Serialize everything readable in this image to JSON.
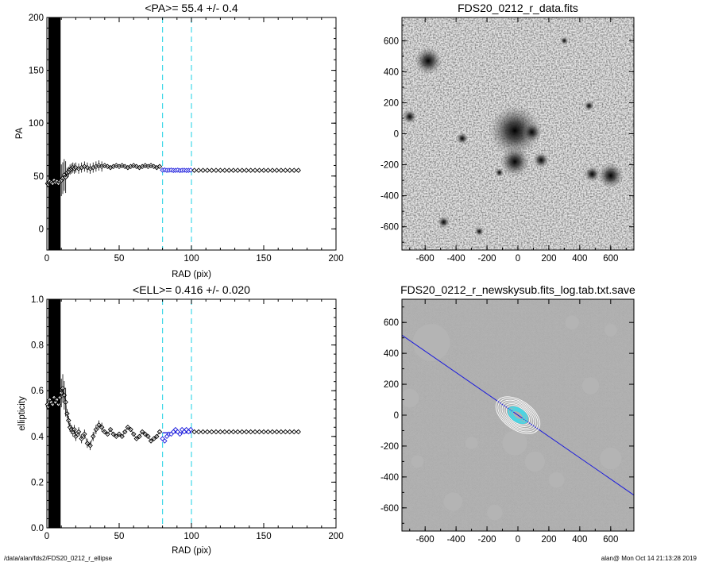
{
  "footer": {
    "left": "/data/alan/fds2/FDS20_0212_r_ellipse",
    "right": "alan@  Mon Oct 14 21:13:28 2019"
  },
  "colors": {
    "guide": "#40d8e8",
    "fit": "#1a1adc",
    "points": "#000000"
  },
  "chart_data": [
    {
      "type": "scatter",
      "title": "<PA>=  55.4 +/-   0.4",
      "xlabel": "RAD (pix)",
      "ylabel": "PA",
      "xlim": [
        0,
        200
      ],
      "ylim": [
        -20,
        200
      ],
      "xticks": [
        0,
        50,
        100,
        150,
        200
      ],
      "yticks": [
        0,
        50,
        100,
        150,
        200
      ],
      "vlines": [
        80,
        100
      ],
      "fit_range": [
        80,
        100
      ],
      "fit_value": 55.4,
      "series": [
        {
          "values": [
            [
              0.5,
              43
            ],
            [
              1,
              42
            ],
            [
              1.5,
              44
            ],
            [
              2,
              45
            ],
            [
              3,
              44
            ],
            [
              4,
              43
            ],
            [
              5,
              46
            ],
            [
              6,
              44
            ],
            [
              7,
              45
            ],
            [
              8,
              43
            ],
            [
              9,
              45
            ],
            [
              10,
              46
            ],
            [
              11,
              48
            ],
            [
              12,
              51
            ],
            [
              13,
              49
            ],
            [
              14,
              53
            ],
            [
              15,
              54
            ],
            [
              16,
              56
            ],
            [
              17,
              57
            ],
            [
              18,
              58
            ],
            [
              19,
              57
            ],
            [
              20,
              58
            ],
            [
              22,
              57
            ],
            [
              24,
              58
            ],
            [
              26,
              59
            ],
            [
              28,
              58
            ],
            [
              30,
              57
            ],
            [
              32,
              58
            ],
            [
              34,
              59
            ],
            [
              36,
              60
            ],
            [
              38,
              59
            ],
            [
              40,
              60
            ],
            [
              42,
              59
            ],
            [
              44,
              58
            ],
            [
              46,
              59
            ],
            [
              48,
              60
            ],
            [
              50,
              59
            ],
            [
              52,
              60
            ],
            [
              54,
              59
            ],
            [
              56,
              58
            ],
            [
              58,
              59
            ],
            [
              60,
              60
            ],
            [
              62,
              59
            ],
            [
              64,
              58
            ],
            [
              66,
              59
            ],
            [
              68,
              60
            ],
            [
              70,
              59
            ],
            [
              72,
              60
            ],
            [
              74,
              59
            ],
            [
              76,
              58
            ],
            [
              78,
              59
            ]
          ]
        },
        {
          "values": [
            [
              80,
              55.6
            ],
            [
              81.5,
              55.8
            ],
            [
              83,
              55.4
            ],
            [
              84.5,
              55.5
            ],
            [
              86,
              55.7
            ],
            [
              87.5,
              55.3
            ],
            [
              89,
              55.4
            ],
            [
              90.5,
              55.6
            ],
            [
              92,
              55.2
            ],
            [
              93.5,
              55.4
            ],
            [
              95,
              55.5
            ],
            [
              96.5,
              55.3
            ],
            [
              98,
              55.4
            ],
            [
              99.5,
              55.6
            ]
          ]
        },
        {
          "values": [
            [
              102,
              55.4
            ],
            [
              105,
              55.4
            ],
            [
              108,
              55.4
            ],
            [
              111,
              55.4
            ],
            [
              114,
              55.4
            ],
            [
              117,
              55.4
            ],
            [
              120,
              55.4
            ],
            [
              123,
              55.4
            ],
            [
              126,
              55.4
            ],
            [
              129,
              55.4
            ],
            [
              132,
              55.4
            ],
            [
              135,
              55.4
            ],
            [
              138,
              55.4
            ],
            [
              141,
              55.4
            ],
            [
              144,
              55.4
            ],
            [
              147,
              55.4
            ],
            [
              150,
              55.4
            ],
            [
              153,
              55.4
            ],
            [
              156,
              55.4
            ],
            [
              159,
              55.4
            ],
            [
              162,
              55.4
            ],
            [
              165,
              55.4
            ],
            [
              168,
              55.4
            ],
            [
              171,
              55.4
            ],
            [
              174,
              55.4
            ]
          ]
        }
      ]
    },
    {
      "type": "scatter",
      "title": "<ELL>= 0.416 +/-  0.020",
      "xlabel": "RAD (pix)",
      "ylabel": "ellipticity",
      "xlim": [
        0,
        200
      ],
      "ylim": [
        0,
        1
      ],
      "xticks": [
        0,
        50,
        100,
        150,
        200
      ],
      "yticks": [
        0.0,
        0.2,
        0.4,
        0.6,
        0.8,
        1.0
      ],
      "vlines": [
        80,
        100
      ],
      "fit_range": [
        80,
        100
      ],
      "fit_value": 0.416,
      "series": [
        {
          "values": [
            [
              0.5,
              0.54
            ],
            [
              1,
              0.53
            ],
            [
              1.5,
              0.55
            ],
            [
              2,
              0.56
            ],
            [
              3,
              0.55
            ],
            [
              4,
              0.54
            ],
            [
              5,
              0.57
            ],
            [
              6,
              0.55
            ],
            [
              7,
              0.56
            ],
            [
              8,
              0.54
            ],
            [
              9,
              0.57
            ],
            [
              10,
              0.59
            ],
            [
              11,
              0.61
            ],
            [
              12,
              0.58
            ],
            [
              13,
              0.55
            ],
            [
              14,
              0.5
            ],
            [
              15,
              0.47
            ],
            [
              16,
              0.44
            ],
            [
              17,
              0.43
            ],
            [
              18,
              0.42
            ],
            [
              19,
              0.43
            ],
            [
              20,
              0.4
            ],
            [
              22,
              0.42
            ],
            [
              24,
              0.39
            ],
            [
              26,
              0.41
            ],
            [
              28,
              0.37
            ],
            [
              30,
              0.36
            ],
            [
              32,
              0.4
            ],
            [
              34,
              0.43
            ],
            [
              36,
              0.45
            ],
            [
              38,
              0.44
            ],
            [
              40,
              0.42
            ],
            [
              42,
              0.41
            ],
            [
              44,
              0.43
            ],
            [
              46,
              0.41
            ],
            [
              48,
              0.4
            ],
            [
              50,
              0.41
            ],
            [
              52,
              0.4
            ],
            [
              54,
              0.42
            ],
            [
              56,
              0.44
            ],
            [
              58,
              0.43
            ],
            [
              60,
              0.41
            ],
            [
              62,
              0.39
            ],
            [
              64,
              0.4
            ],
            [
              66,
              0.42
            ],
            [
              68,
              0.41
            ],
            [
              70,
              0.4
            ],
            [
              72,
              0.38
            ],
            [
              74,
              0.39
            ],
            [
              76,
              0.4
            ],
            [
              78,
              0.42
            ]
          ]
        },
        {
          "values": [
            [
              80,
              0.39
            ],
            [
              81.5,
              0.38
            ],
            [
              83,
              0.4
            ],
            [
              84.5,
              0.41
            ],
            [
              86,
              0.41
            ],
            [
              87.5,
              0.42
            ],
            [
              89,
              0.43
            ],
            [
              90.5,
              0.42
            ],
            [
              92,
              0.41
            ],
            [
              93.5,
              0.43
            ],
            [
              95,
              0.42
            ],
            [
              96.5,
              0.43
            ],
            [
              98,
              0.42
            ],
            [
              99.5,
              0.43
            ]
          ]
        },
        {
          "values": [
            [
              102,
              0.42
            ],
            [
              105,
              0.42
            ],
            [
              108,
              0.42
            ],
            [
              111,
              0.42
            ],
            [
              114,
              0.42
            ],
            [
              117,
              0.42
            ],
            [
              120,
              0.42
            ],
            [
              123,
              0.42
            ],
            [
              126,
              0.42
            ],
            [
              129,
              0.42
            ],
            [
              132,
              0.42
            ],
            [
              135,
              0.42
            ],
            [
              138,
              0.42
            ],
            [
              141,
              0.42
            ],
            [
              144,
              0.42
            ],
            [
              147,
              0.42
            ],
            [
              150,
              0.42
            ],
            [
              153,
              0.42
            ],
            [
              156,
              0.42
            ],
            [
              159,
              0.42
            ],
            [
              162,
              0.42
            ],
            [
              165,
              0.42
            ],
            [
              168,
              0.42
            ],
            [
              171,
              0.42
            ],
            [
              174,
              0.42
            ]
          ]
        }
      ]
    },
    {
      "type": "heatmap",
      "title": "FDS20_0212_r_data.fits",
      "xlim": [
        -750,
        750
      ],
      "ylim": [
        -750,
        750
      ],
      "xticks": [
        -600,
        -400,
        -200,
        0,
        200,
        400,
        600
      ],
      "yticks": [
        -600,
        -400,
        -200,
        0,
        200,
        400,
        600
      ],
      "sources": [
        {
          "x": -580,
          "y": 470,
          "size": 28
        },
        {
          "x": -20,
          "y": 20,
          "size": 52
        },
        {
          "x": -20,
          "y": -180,
          "size": 30
        },
        {
          "x": 90,
          "y": 10,
          "size": 20
        },
        {
          "x": 150,
          "y": -170,
          "size": 16
        },
        {
          "x": 600,
          "y": -270,
          "size": 26
        },
        {
          "x": 480,
          "y": -260,
          "size": 16
        },
        {
          "x": -700,
          "y": 110,
          "size": 14
        },
        {
          "x": 460,
          "y": 180,
          "size": 10
        },
        {
          "x": -360,
          "y": -30,
          "size": 12
        },
        {
          "x": -480,
          "y": -570,
          "size": 12
        },
        {
          "x": -250,
          "y": -630,
          "size": 9
        },
        {
          "x": -120,
          "y": -250,
          "size": 9
        },
        {
          "x": 300,
          "y": 600,
          "size": 8
        }
      ]
    },
    {
      "type": "heatmap",
      "title": "FDS20_0212_r_newskysub.fits_log.tab.txt.save",
      "xlim": [
        -750,
        750
      ],
      "ylim": [
        -750,
        750
      ],
      "xticks": [
        -600,
        -400,
        -200,
        0,
        200,
        400,
        600
      ],
      "yticks": [
        -600,
        -400,
        -200,
        0,
        200,
        400,
        600
      ],
      "pa_line": {
        "angle_deg": 55.4
      },
      "ellipses": {
        "center": [
          0,
          0
        ],
        "ell": 0.416,
        "radii": [
          40,
          55,
          70,
          85,
          100,
          115,
          130,
          145,
          160
        ]
      }
    }
  ]
}
